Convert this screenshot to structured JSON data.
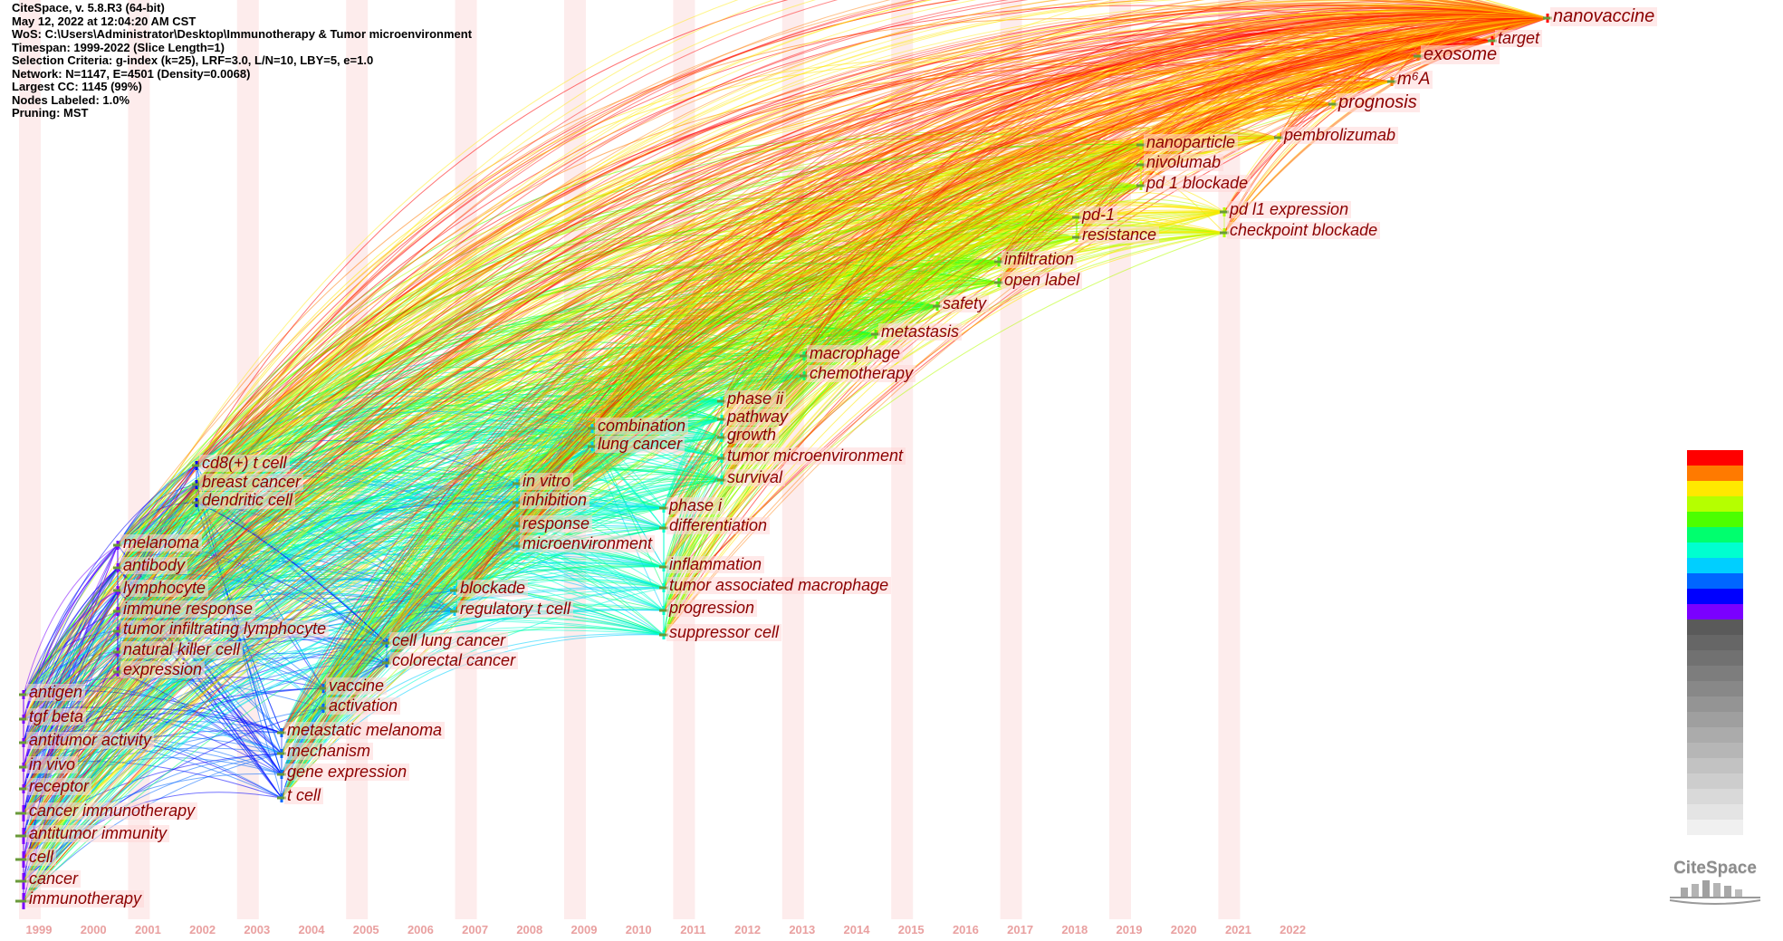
{
  "header": {
    "lines": [
      "CiteSpace, v. 5.8.R3 (64-bit)",
      "May 12, 2022 at 12:04:20 AM CST",
      "WoS: C:\\Users\\Administrator\\Desktop\\Immunotherapy & Tumor microenvironment",
      "Timespan: 1999-2022 (Slice Length=1)",
      "Selection Criteria: g-index (k=25), LRF=3.0, L/N=10, LBY=5, e=1.0",
      "Network: N=1147, E=4501 (Density=0.0068)",
      "Largest CC: 1145 (99%)",
      "Nodes Labeled: 1.0%",
      "Pruning: MST"
    ]
  },
  "years": [
    "1999",
    "2000",
    "2001",
    "2002",
    "2003",
    "2004",
    "2005",
    "2006",
    "2007",
    "2008",
    "2009",
    "2010",
    "2011",
    "2012",
    "2013",
    "2014",
    "2015",
    "2016",
    "2017",
    "2018",
    "2019",
    "2020",
    "2021",
    "2022"
  ],
  "keywords": [
    {
      "text": "nanovaccine",
      "year": "2022",
      "size": 20
    },
    {
      "text": "target",
      "year": "2021",
      "size": 18
    },
    {
      "text": "exosome",
      "year": "2020",
      "size": 20
    },
    {
      "text": "m⁶A",
      "year": "2019",
      "size": 19
    },
    {
      "text": "prognosis",
      "year": "2018",
      "size": 20
    },
    {
      "text": "pembrolizumab",
      "year": "2017",
      "size": 18
    },
    {
      "text": "nanoparticle",
      "year": "2015",
      "size": 18
    },
    {
      "text": "nivolumab",
      "year": "2015",
      "size": 18
    },
    {
      "text": "pd 1 blockade",
      "year": "2015",
      "size": 18
    },
    {
      "text": "pd l1 expression",
      "year": "2016",
      "size": 18
    },
    {
      "text": "pd-1",
      "year": "2014",
      "size": 18
    },
    {
      "text": "resistance",
      "year": "2014",
      "size": 18
    },
    {
      "text": "checkpoint blockade",
      "year": "2016",
      "size": 18
    },
    {
      "text": "infiltration",
      "year": "2013",
      "size": 18
    },
    {
      "text": "open label",
      "year": "2013",
      "size": 18
    },
    {
      "text": "safety",
      "year": "2012",
      "size": 18
    },
    {
      "text": "metastasis",
      "year": "2012",
      "size": 18
    },
    {
      "text": "macrophage",
      "year": "2010",
      "size": 18
    },
    {
      "text": "chemotherapy",
      "year": "2010",
      "size": 18
    },
    {
      "text": "phase ii",
      "year": "2009",
      "size": 18
    },
    {
      "text": "pathway",
      "year": "2009",
      "size": 18
    },
    {
      "text": "growth",
      "year": "2009",
      "size": 18
    },
    {
      "text": "tumor microenvironment",
      "year": "2009",
      "size": 18
    },
    {
      "text": "survival",
      "year": "2009",
      "size": 18
    },
    {
      "text": "combination",
      "year": "2007",
      "size": 18
    },
    {
      "text": "lung cancer",
      "year": "2007",
      "size": 18
    },
    {
      "text": "in vitro",
      "year": "2006",
      "size": 18
    },
    {
      "text": "inhibition",
      "year": "2006",
      "size": 18
    },
    {
      "text": "response",
      "year": "2006",
      "size": 18
    },
    {
      "text": "microenvironment",
      "year": "2006",
      "size": 18
    },
    {
      "text": "phase i",
      "year": "2008",
      "size": 18
    },
    {
      "text": "differentiation",
      "year": "2008",
      "size": 18
    },
    {
      "text": "inflammation",
      "year": "2008",
      "size": 18
    },
    {
      "text": "tumor associated macrophage",
      "year": "2008",
      "size": 18
    },
    {
      "text": "progression",
      "year": "2008",
      "size": 18
    },
    {
      "text": "suppressor cell",
      "year": "2008",
      "size": 18
    },
    {
      "text": "blockade",
      "year": "2005",
      "size": 18
    },
    {
      "text": "regulatory t cell",
      "year": "2005",
      "size": 18
    },
    {
      "text": "cell lung cancer",
      "year": "2004",
      "size": 18
    },
    {
      "text": "colorectal cancer",
      "year": "2004",
      "size": 18
    },
    {
      "text": "cd8(+) t cell",
      "year": "2001",
      "size": 18
    },
    {
      "text": "breast cancer",
      "year": "2001",
      "size": 18
    },
    {
      "text": "dendritic cell",
      "year": "2001",
      "size": 18
    },
    {
      "text": "melanoma",
      "year": "2000",
      "size": 18
    },
    {
      "text": "antibody",
      "year": "2000",
      "size": 18
    },
    {
      "text": "lymphocyte",
      "year": "2000",
      "size": 18
    },
    {
      "text": "immune response",
      "year": "2000",
      "size": 18
    },
    {
      "text": "tumor infiltrating lymphocyte",
      "year": "2000",
      "size": 18
    },
    {
      "text": "natural killer cell",
      "year": "2000",
      "size": 18
    },
    {
      "text": "expression",
      "year": "2000",
      "size": 18
    },
    {
      "text": "vaccine",
      "year": "2003",
      "size": 18
    },
    {
      "text": "activation",
      "year": "2003",
      "size": 18
    },
    {
      "text": "metastatic melanoma",
      "year": "2003",
      "size": 18
    },
    {
      "text": "mechanism",
      "year": "2003",
      "size": 18
    },
    {
      "text": "gene expression",
      "year": "2003",
      "size": 18
    },
    {
      "text": "t cell",
      "year": "2003",
      "size": 18
    },
    {
      "text": "antigen",
      "year": "1999",
      "size": 18
    },
    {
      "text": "tgf beta",
      "year": "1999",
      "size": 18
    },
    {
      "text": "antitumor activity",
      "year": "1999",
      "size": 18
    },
    {
      "text": "in vivo",
      "year": "1999",
      "size": 18
    },
    {
      "text": "receptor",
      "year": "1999",
      "size": 18
    },
    {
      "text": "cancer immunotherapy",
      "year": "1999",
      "size": 18
    },
    {
      "text": "antitumor immunity",
      "year": "1999",
      "size": 18
    },
    {
      "text": "cell",
      "year": "1999",
      "size": 18
    },
    {
      "text": "cancer",
      "year": "1999",
      "size": 18
    },
    {
      "text": "immunotherapy",
      "year": "1999",
      "size": 18
    }
  ],
  "colors": {
    "label_text": "#8b0000",
    "year_text": "#e9a0a0",
    "stripe": "#fdecec",
    "spectrum": [
      "#ff0000",
      "#ff7a00",
      "#ffe800",
      "#b5ff00",
      "#4cff00",
      "#00ff6e",
      "#00ffd0",
      "#00cfff",
      "#0066ff",
      "#0000ff",
      "#7a00ff"
    ]
  },
  "logo": {
    "text": "CiteSpace",
    "icon": "citespace-logo-icon"
  }
}
